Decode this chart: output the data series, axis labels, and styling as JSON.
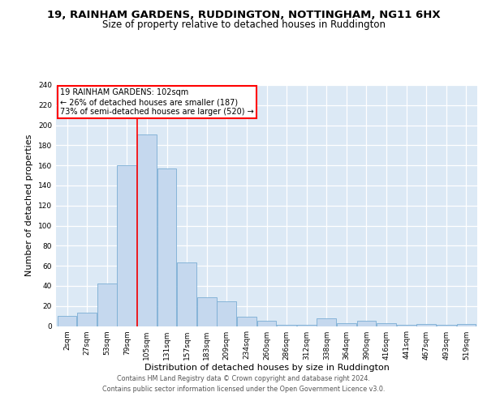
{
  "title": "19, RAINHAM GARDENS, RUDDINGTON, NOTTINGHAM, NG11 6HX",
  "subtitle": "Size of property relative to detached houses in Ruddington",
  "xlabel": "Distribution of detached houses by size in Ruddington",
  "ylabel": "Number of detached properties",
  "bar_color": "#c5d8ee",
  "bar_edge_color": "#7aadd4",
  "background_color": "#dce9f5",
  "grid_color": "white",
  "annotation_text": "19 RAINHAM GARDENS: 102sqm\n← 26% of detached houses are smaller (187)\n73% of semi-detached houses are larger (520) →",
  "annotation_box_color": "white",
  "annotation_box_edge_color": "red",
  "vline_color": "red",
  "vline_pos": 3.5,
  "categories": [
    "2sqm",
    "27sqm",
    "53sqm",
    "79sqm",
    "105sqm",
    "131sqm",
    "157sqm",
    "183sqm",
    "209sqm",
    "234sqm",
    "260sqm",
    "286sqm",
    "312sqm",
    "338sqm",
    "364sqm",
    "390sqm",
    "416sqm",
    "441sqm",
    "467sqm",
    "493sqm",
    "519sqm"
  ],
  "values": [
    10,
    13,
    42,
    160,
    191,
    157,
    63,
    29,
    25,
    9,
    5,
    1,
    1,
    8,
    3,
    5,
    3,
    1,
    2,
    1,
    2
  ],
  "ylim": [
    0,
    240
  ],
  "yticks": [
    0,
    20,
    40,
    60,
    80,
    100,
    120,
    140,
    160,
    180,
    200,
    220,
    240
  ],
  "footer_line1": "Contains HM Land Registry data © Crown copyright and database right 2024.",
  "footer_line2": "Contains public sector information licensed under the Open Government Licence v3.0.",
  "title_fontsize": 9.5,
  "subtitle_fontsize": 8.5,
  "tick_fontsize": 6.5,
  "ylabel_fontsize": 8,
  "xlabel_fontsize": 8
}
